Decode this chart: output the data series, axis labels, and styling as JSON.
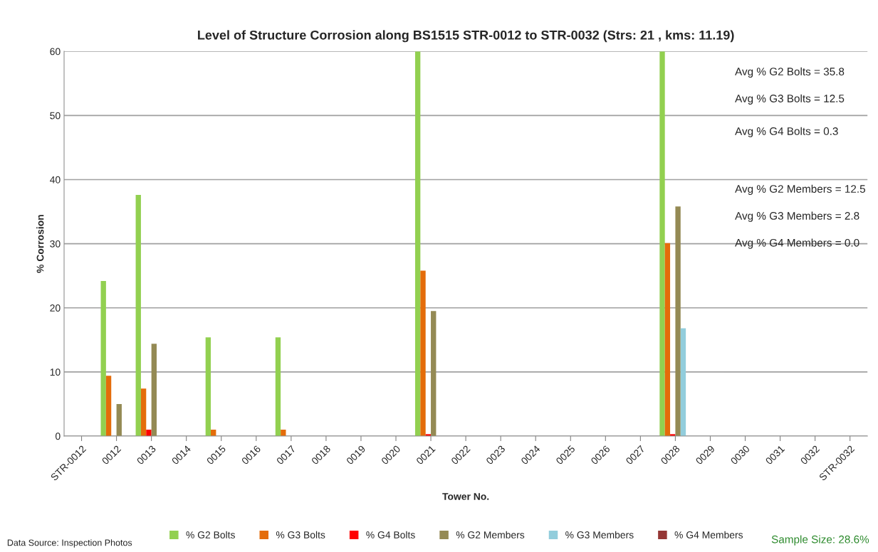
{
  "chart_data": {
    "type": "bar",
    "title": "Level of Structure Corrosion along BS1515 STR-0012 to STR-0032 (Strs: 21 , kms: 11.19)",
    "xlabel": "Tower No.",
    "ylabel": "% Corrosion",
    "categories": [
      "STR-0012",
      "0012",
      "0013",
      "0014",
      "0015",
      "0016",
      "0017",
      "0018",
      "0019",
      "0020",
      "0021",
      "0022",
      "0023",
      "0024",
      "0025",
      "0026",
      "0027",
      "0028",
      "0029",
      "0030",
      "0031",
      "0032",
      "STR-0032"
    ],
    "series": [
      {
        "name": "% G2 Bolts",
        "color": "#92d050",
        "values": [
          0,
          24.2,
          37.6,
          0,
          15.4,
          0,
          15.4,
          0,
          0,
          0,
          60,
          0,
          0,
          0,
          0,
          0,
          0,
          60,
          0,
          0,
          0,
          0,
          0
        ]
      },
      {
        "name": "% G3 Bolts",
        "color": "#e46c0a",
        "values": [
          0,
          9.4,
          7.4,
          0,
          1.0,
          0,
          1.0,
          0,
          0,
          0,
          25.8,
          0,
          0,
          0,
          0,
          0,
          0,
          30.1,
          0,
          0,
          0,
          0,
          0
        ]
      },
      {
        "name": "% G4 Bolts",
        "color": "#ff0000",
        "values": [
          0,
          0,
          1.0,
          0,
          0,
          0,
          0,
          0,
          0,
          0,
          0.3,
          0,
          0,
          0,
          0,
          0,
          0,
          0.3,
          0,
          0,
          0,
          0,
          0
        ]
      },
      {
        "name": "% G2 Members",
        "color": "#948a54",
        "values": [
          0,
          5.0,
          14.4,
          0,
          0,
          0,
          0,
          0,
          0,
          0,
          19.5,
          0,
          0,
          0,
          0,
          0,
          0,
          35.8,
          0,
          0,
          0,
          0,
          0
        ]
      },
      {
        "name": "% G3 Members",
        "color": "#92cddc",
        "values": [
          0,
          0,
          0,
          0,
          0,
          0,
          0,
          0,
          0,
          0,
          0,
          0,
          0,
          0,
          0,
          0,
          0,
          16.8,
          0,
          0,
          0,
          0,
          0
        ]
      },
      {
        "name": "% G4 Members",
        "color": "#953735",
        "values": [
          0,
          0,
          0,
          0,
          0,
          0,
          0,
          0,
          0,
          0,
          0,
          0,
          0,
          0,
          0,
          0,
          0,
          0,
          0,
          0,
          0,
          0,
          0
        ]
      }
    ],
    "ylim": [
      0,
      60
    ],
    "yticks": [
      0,
      10,
      20,
      30,
      40,
      50,
      60
    ],
    "grid": "y",
    "legend": "bottom",
    "annotations": [
      "Avg % G2 Bolts = 35.8",
      "Avg % G3 Bolts = 12.5",
      "Avg % G4 Bolts = 0.3",
      "Avg % G2 Members = 12.5",
      "Avg % G3 Members = 2.8",
      "Avg % G4 Members = 0.0",
      "Data Source: Inspection Photos",
      "Sample Size: 28.6%"
    ]
  }
}
